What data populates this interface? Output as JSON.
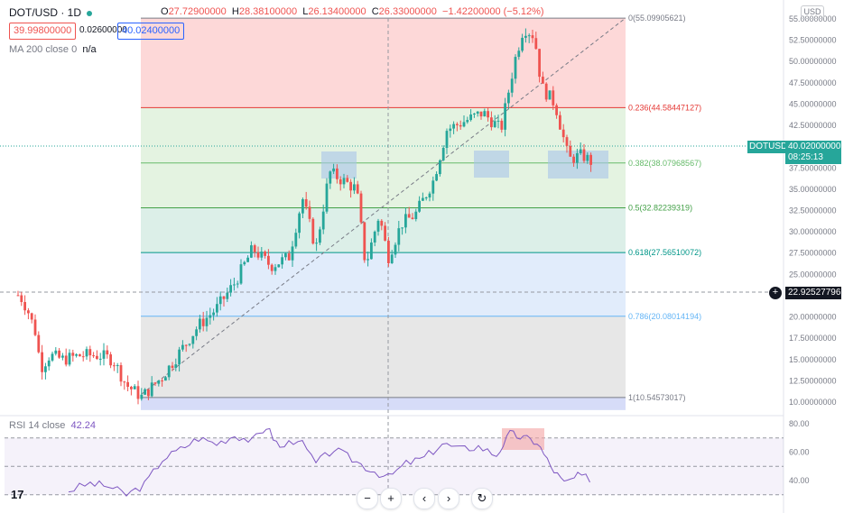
{
  "header": {
    "symbol": "DOT/USD · 1D",
    "dot_color": "#26a69a",
    "ohlc": {
      "o_label": "O",
      "o": "27.72900000",
      "h_label": "H",
      "h": "28.38100000",
      "l_label": "L",
      "l": "26.13400000",
      "c_label": "C",
      "c": "26.33000000",
      "change": "−1.42200000 (−5.12%)"
    },
    "sell_price": "39.99800000",
    "spread": "0.02600000",
    "buy_price": "40.02400000"
  },
  "indicators": {
    "ma_label": "MA 200 close 0",
    "ma_value": "n/a",
    "rsi_label": "RSI 14 close",
    "rsi_value": "42.24"
  },
  "currency_button": "USD",
  "price_axis": {
    "ticks": [
      "55.00000000",
      "52.50000000",
      "50.00000000",
      "47.50000000",
      "45.00000000",
      "42.50000000",
      "40.00000000",
      "37.50000000",
      "35.00000000",
      "32.50000000",
      "30.00000000",
      "27.50000000",
      "25.00000000",
      "22.50000000",
      "20.00000000",
      "17.50000000",
      "15.00000000",
      "12.50000000",
      "10.00000000"
    ],
    "current_tag_symbol": "DOTUSD",
    "current_tag_price": "40.02000000",
    "current_tag_countdown": "08:25:13",
    "crosshair_price": "22.92527796"
  },
  "rsi_axis": {
    "ticks": [
      "80.00",
      "60.00",
      "40.00"
    ]
  },
  "fib_levels": [
    {
      "label": "0(55.09905621)",
      "color": "#787b86"
    },
    {
      "label": "0.236(44.58447127)",
      "color": "#e53935"
    },
    {
      "label": "0.382(38.07968567)",
      "color": "#66bb6a"
    },
    {
      "label": "0.5(32.82239319)",
      "color": "#43a047"
    },
    {
      "label": "0.618(27.56510072)",
      "color": "#009688"
    },
    {
      "label": "0.786(20.08014194)",
      "color": "#64b5f6"
    },
    {
      "label": "1(10.54573017)",
      "color": "#787b86"
    }
  ],
  "colors": {
    "up": "#26a69a",
    "down": "#ef5350",
    "rsi": "#7e57c2",
    "last_price": "#26a69a"
  },
  "nav_buttons": [
    "−",
    "+",
    "‹",
    "›",
    "↻"
  ],
  "logo_text": "17"
}
